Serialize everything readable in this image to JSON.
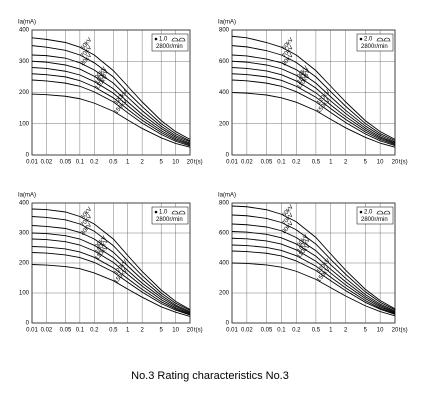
{
  "caption": "No.3 Rating characteristics No.3",
  "chart_data": [
    {
      "type": "line",
      "y_label": "Ia(mA)",
      "x_label": "t(s)",
      "focus": "1.0",
      "speed": "2800r/min",
      "color": "#000",
      "log_x": true,
      "grid": true,
      "x": [
        0.01,
        0.02,
        0.05,
        0.1,
        0.2,
        0.5,
        1,
        2,
        5,
        10,
        20
      ],
      "xlim": [
        0.01,
        20
      ],
      "xticks": [
        0.01,
        0.02,
        0.05,
        0.1,
        0.2,
        0.5,
        1,
        2,
        5,
        10,
        20
      ],
      "ylim": [
        0,
        400
      ],
      "yticks": [
        0,
        100,
        200,
        300,
        400
      ],
      "series": [
        {
          "name": "60kV",
          "values": [
            375,
            370,
            360,
            345,
            320,
            270,
            220,
            170,
            110,
            75,
            50
          ]
        },
        {
          "name": "70kV",
          "values": [
            350,
            345,
            335,
            320,
            295,
            250,
            200,
            155,
            100,
            68,
            45
          ]
        },
        {
          "name": "80kV",
          "values": [
            320,
            318,
            310,
            295,
            272,
            230,
            185,
            142,
            92,
            62,
            42
          ]
        },
        {
          "name": "90kV",
          "values": [
            300,
            297,
            288,
            275,
            252,
            212,
            170,
            130,
            85,
            57,
            38
          ]
        },
        {
          "name": "100kV",
          "values": [
            280,
            277,
            268,
            256,
            235,
            198,
            158,
            120,
            78,
            52,
            35
          ]
        },
        {
          "name": "110kV",
          "values": [
            260,
            257,
            250,
            238,
            218,
            183,
            146,
            111,
            72,
            48,
            32
          ]
        },
        {
          "name": "120kV",
          "values": [
            240,
            237,
            230,
            220,
            202,
            170,
            135,
            102,
            66,
            44,
            29
          ]
        },
        {
          "name": "150kV",
          "values": [
            195,
            193,
            188,
            180,
            166,
            140,
            112,
            85,
            55,
            37,
            25
          ]
        }
      ]
    },
    {
      "type": "line",
      "y_label": "Ia(mA)",
      "x_label": "t(s)",
      "focus": "2.0",
      "speed": "2800r/min",
      "color": "#000",
      "log_x": true,
      "grid": true,
      "x": [
        0.01,
        0.02,
        0.05,
        0.1,
        0.2,
        0.5,
        1,
        2,
        5,
        10,
        20
      ],
      "xlim": [
        0.01,
        20
      ],
      "xticks": [
        0.01,
        0.02,
        0.05,
        0.1,
        0.2,
        0.5,
        1,
        2,
        5,
        10,
        20
      ],
      "ylim": [
        0,
        800
      ],
      "yticks": [
        0,
        200,
        400,
        600,
        800
      ],
      "series": [
        {
          "name": "60kV",
          "values": [
            760,
            750,
            720,
            690,
            640,
            540,
            440,
            340,
            220,
            150,
            100
          ]
        },
        {
          "name": "70kV",
          "values": [
            700,
            692,
            668,
            640,
            592,
            500,
            405,
            312,
            202,
            137,
            92
          ]
        },
        {
          "name": "80kV",
          "values": [
            640,
            634,
            614,
            590,
            546,
            460,
            372,
            286,
            186,
            126,
            84
          ]
        },
        {
          "name": "90kV",
          "values": [
            600,
            594,
            576,
            552,
            510,
            428,
            346,
            266,
            172,
            116,
            78
          ]
        },
        {
          "name": "100kV",
          "values": [
            560,
            554,
            538,
            514,
            474,
            398,
            320,
            246,
            160,
            108,
            72
          ]
        },
        {
          "name": "110kV",
          "values": [
            520,
            515,
            500,
            478,
            440,
            370,
            297,
            228,
            148,
            100,
            66
          ]
        },
        {
          "name": "120kV",
          "values": [
            480,
            475,
            460,
            440,
            405,
            340,
            272,
            208,
            135,
            91,
            60
          ]
        },
        {
          "name": "150kV",
          "values": [
            400,
            396,
            384,
            366,
            338,
            284,
            228,
            174,
            113,
            76,
            50
          ]
        }
      ]
    },
    {
      "type": "line",
      "y_label": "Ia(mA)",
      "x_label": "t(s)",
      "focus": "1.0",
      "speed": "2800r/min",
      "color": "#000",
      "log_x": true,
      "grid": true,
      "x": [
        0.01,
        0.02,
        0.05,
        0.1,
        0.2,
        0.5,
        1,
        2,
        5,
        10,
        20
      ],
      "xlim": [
        0.01,
        20
      ],
      "xticks": [
        0.01,
        0.02,
        0.05,
        0.1,
        0.2,
        0.5,
        1,
        2,
        5,
        10,
        20
      ],
      "ylim": [
        0,
        400
      ],
      "yticks": [
        0,
        100,
        200,
        300,
        400
      ],
      "series": [
        {
          "name": "60kV",
          "values": [
            380,
            378,
            370,
            355,
            330,
            280,
            225,
            172,
            110,
            72,
            45
          ]
        },
        {
          "name": "70kV",
          "values": [
            355,
            352,
            344,
            330,
            306,
            258,
            207,
            158,
            100,
            66,
            42
          ]
        },
        {
          "name": "80kV",
          "values": [
            325,
            322,
            315,
            302,
            280,
            236,
            190,
            145,
            92,
            60,
            38
          ]
        },
        {
          "name": "90kV",
          "values": [
            300,
            298,
            291,
            280,
            259,
            218,
            175,
            133,
            85,
            56,
            35
          ]
        },
        {
          "name": "100kV",
          "values": [
            280,
            278,
            271,
            260,
            240,
            202,
            162,
            123,
            78,
            51,
            32
          ]
        },
        {
          "name": "110kV",
          "values": [
            255,
            253,
            247,
            237,
            219,
            184,
            148,
            112,
            71,
            47,
            29
          ]
        },
        {
          "name": "120kV",
          "values": [
            235,
            233,
            227,
            218,
            202,
            170,
            136,
            103,
            65,
            43,
            27
          ]
        },
        {
          "name": "150kV",
          "values": [
            195,
            193,
            188,
            181,
            167,
            141,
            113,
            86,
            54,
            36,
            22
          ]
        }
      ]
    },
    {
      "type": "line",
      "y_label": "Ia(mA)",
      "x_label": "t(s)",
      "focus": "2.0",
      "speed": "2800r/min",
      "color": "#000",
      "log_x": true,
      "grid": true,
      "x": [
        0.01,
        0.02,
        0.05,
        0.1,
        0.2,
        0.5,
        1,
        2,
        5,
        10,
        20
      ],
      "xlim": [
        0.01,
        20
      ],
      "xticks": [
        0.01,
        0.02,
        0.05,
        0.1,
        0.2,
        0.5,
        1,
        2,
        5,
        10,
        20
      ],
      "ylim": [
        0,
        800
      ],
      "yticks": [
        0,
        200,
        400,
        600,
        800
      ],
      "series": [
        {
          "name": "60kV",
          "values": [
            780,
            775,
            755,
            725,
            675,
            570,
            460,
            352,
            225,
            150,
            95
          ]
        },
        {
          "name": "70kV",
          "values": [
            720,
            715,
            697,
            670,
            622,
            526,
            424,
            325,
            208,
            138,
            88
          ]
        },
        {
          "name": "80kV",
          "values": [
            660,
            655,
            640,
            615,
            570,
            482,
            388,
            298,
            190,
            126,
            80
          ]
        },
        {
          "name": "90kV",
          "values": [
            610,
            606,
            591,
            568,
            527,
            445,
            358,
            275,
            176,
            117,
            74
          ]
        },
        {
          "name": "100kV",
          "values": [
            565,
            561,
            547,
            526,
            488,
            412,
            332,
            254,
            163,
            108,
            68
          ]
        },
        {
          "name": "110kV",
          "values": [
            520,
            516,
            504,
            484,
            449,
            379,
            305,
            234,
            150,
            99,
            63
          ]
        },
        {
          "name": "120kV",
          "values": [
            480,
            476,
            465,
            447,
            414,
            350,
            282,
            216,
            138,
            92,
            58
          ]
        },
        {
          "name": "150kV",
          "values": [
            400,
            397,
            387,
            372,
            345,
            291,
            235,
            180,
            115,
            76,
            48
          ]
        }
      ]
    }
  ]
}
